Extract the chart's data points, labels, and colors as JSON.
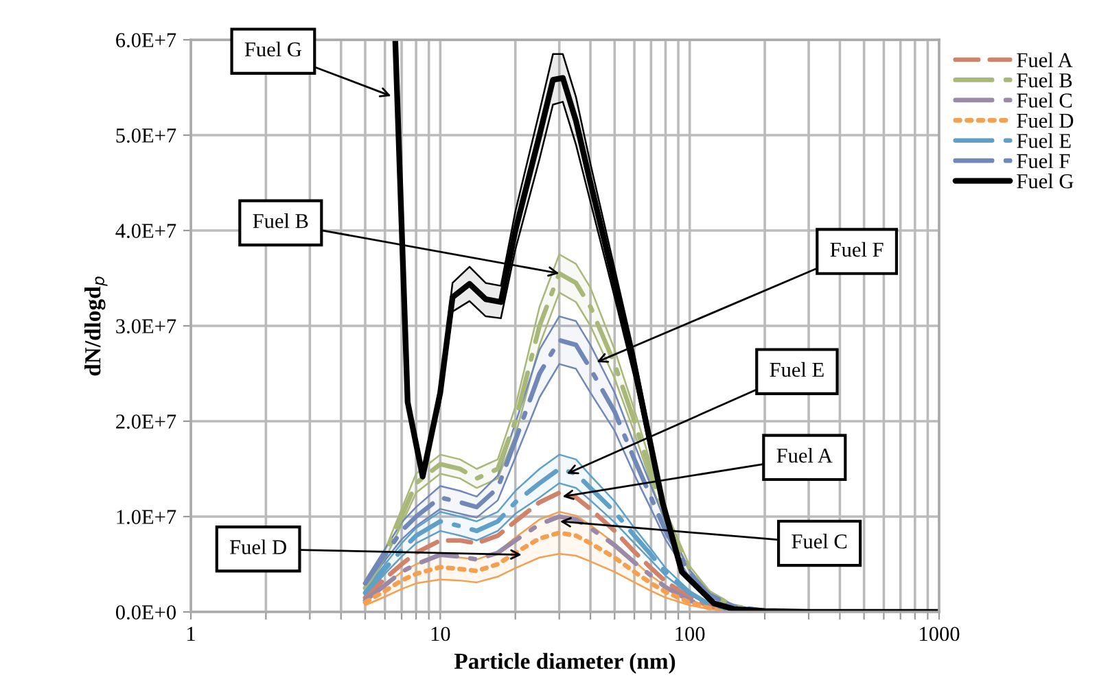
{
  "chart_data": {
    "type": "line",
    "xlabel": "Particle diameter (nm)",
    "ylabel": "dN/dlogd$_{p}$",
    "log": "x",
    "grid": true,
    "legend": "top right",
    "xlim": [
      1,
      1000
    ],
    "ylim": [
      0,
      60000000.0
    ],
    "xticks": [
      1,
      {
        "value": 2,
        "label": null
      },
      {
        "value": 3,
        "label": null
      },
      {
        "value": 4,
        "label": null
      },
      {
        "value": 5,
        "label": null
      },
      {
        "value": 6,
        "label": null
      },
      {
        "value": 7,
        "label": null
      },
      {
        "value": 8,
        "label": null
      },
      {
        "value": 9,
        "label": null
      },
      10,
      {
        "value": 20,
        "label": null
      },
      {
        "value": 30,
        "label": null
      },
      {
        "value": 40,
        "label": null
      },
      {
        "value": 50,
        "label": null
      },
      {
        "value": 60,
        "label": null
      },
      {
        "value": 70,
        "label": null
      },
      {
        "value": 80,
        "label": null
      },
      {
        "value": 90,
        "label": null
      },
      100,
      {
        "value": 200,
        "label": null
      },
      {
        "value": 300,
        "label": null
      },
      {
        "value": 400,
        "label": null
      },
      {
        "value": 500,
        "label": null
      },
      {
        "value": 600,
        "label": null
      },
      {
        "value": 700,
        "label": null
      },
      {
        "value": 800,
        "label": null
      },
      {
        "value": 900,
        "label": null
      },
      1000
    ],
    "yticks": [
      {
        "value": 0,
        "label": "0.0E+0"
      },
      {
        "value": 10000000.0,
        "label": "1.0E+7"
      },
      {
        "value": 20000000.0,
        "label": "2.0E+7"
      },
      {
        "value": 30000000.0,
        "label": "3.0E+7"
      },
      {
        "value": 40000000.0,
        "label": "4.0E+7"
      },
      {
        "value": 50000000.0,
        "label": "5.0E+7"
      },
      {
        "value": 60000000.0,
        "label": "6.0E+7"
      }
    ],
    "series": [
      {
        "name": "Fuel A",
        "color": "#d0826a",
        "line_style": "dashed",
        "x": [
          5,
          6,
          7,
          8,
          10,
          12,
          14,
          17,
          20,
          25,
          30,
          35,
          40,
          50,
          60,
          70,
          80,
          100,
          120,
          150,
          200
        ],
        "values": [
          1500000.0,
          3500000.0,
          5000000.0,
          6200000.0,
          7500000.0,
          7500000.0,
          7200000.0,
          8000000.0,
          9500000.0,
          11500000.0,
          12500000.0,
          12000000.0,
          10800000.0,
          8500000.0,
          6300000.0,
          4600000.0,
          3200000.0,
          1500000.0,
          600000.0,
          200000.0,
          0
        ]
      },
      {
        "name": "Fuel B",
        "color": "#a8b878",
        "line_style": "dashdot",
        "x": [
          5,
          6,
          7,
          8,
          10,
          12,
          14,
          17,
          20,
          25,
          30,
          35,
          40,
          50,
          60,
          70,
          80,
          100,
          120,
          150,
          200,
          300,
          500,
          1000
        ],
        "values": [
          2500000.0,
          6000000.0,
          10000000.0,
          13500000.0,
          15500000.0,
          15000000.0,
          14000000.0,
          15000000.0,
          20000000.0,
          30000000.0,
          35500000.0,
          34500000.0,
          32000000.0,
          26000000.0,
          20000000.0,
          14500000.0,
          10000000.0,
          4500000.0,
          2000000.0,
          600000.0,
          100000.0,
          0,
          0,
          0
        ],
        "upper": [
          2800000.0,
          6500000.0,
          10800000.0,
          14500000.0,
          16500000.0,
          16000000.0,
          15000000.0,
          16000000.0,
          21500000.0,
          32000000.0,
          37500000.0,
          36500000.0,
          34000000.0,
          27500000.0,
          21200000.0,
          15500000.0,
          10700000.0,
          4800000.0,
          2200000.0,
          700000.0,
          100000.0,
          0,
          0,
          0
        ],
        "lower": [
          2200000.0,
          5500000.0,
          9200000.0,
          12500000.0,
          14500000.0,
          14000000.0,
          13000000.0,
          14000000.0,
          18500000.0,
          28000000.0,
          33500000.0,
          32500000.0,
          30000000.0,
          24500000.0,
          18800000.0,
          13500000.0,
          9300000.0,
          4200000.0,
          1800000.0,
          500000.0,
          100000.0,
          0,
          0,
          0
        ]
      },
      {
        "name": "Fuel C",
        "color": "#9b89a8",
        "line_style": "dashdot",
        "x": [
          5,
          6,
          7,
          8,
          10,
          12,
          14,
          17,
          20,
          25,
          30,
          35,
          40,
          50,
          60,
          70,
          80,
          100,
          120,
          150,
          200,
          300,
          500,
          1000
        ],
        "values": [
          1200000.0,
          2800000.0,
          4200000.0,
          5000000.0,
          6000000.0,
          5800000.0,
          5500000.0,
          6200000.0,
          7500000.0,
          9200000.0,
          10000000.0,
          9700000.0,
          8800000.0,
          7000000.0,
          5200000.0,
          3800000.0,
          2600000.0,
          1200000.0,
          500000.0,
          200000.0,
          0,
          0,
          0,
          0
        ]
      },
      {
        "name": "Fuel D",
        "color": "#f5a050",
        "line_style": "dotted",
        "x": [
          5,
          6,
          7,
          8,
          10,
          12,
          14,
          17,
          20,
          25,
          30,
          35,
          40,
          50,
          60,
          70,
          80,
          100,
          120,
          150,
          200
        ],
        "values": [
          1000000.0,
          2200000.0,
          3300000.0,
          4000000.0,
          4700000.0,
          4500000.0,
          4300000.0,
          5000000.0,
          6200000.0,
          7700000.0,
          8300000.0,
          8000000.0,
          7200000.0,
          5700000.0,
          4200000.0,
          3000000.0,
          2100000.0,
          1000000.0,
          400000.0,
          100000.0,
          0
        ],
        "upper": [
          1300000.0,
          2800000.0,
          4200000.0,
          5000000.0,
          6000000.0,
          5700000.0,
          5500000.0,
          6300000.0,
          7800000.0,
          9700000.0,
          10500000.0,
          10100000.0,
          9100000.0,
          7200000.0,
          5300000.0,
          3800000.0,
          2700000.0,
          1300000.0,
          500000.0,
          100000.0,
          0
        ],
        "lower": [
          700000.0,
          1600000.0,
          2400000.0,
          3000000.0,
          3400000.0,
          3300000.0,
          3100000.0,
          3700000.0,
          4600000.0,
          5700000.0,
          6100000.0,
          5900000.0,
          5300000.0,
          4200000.0,
          3100000.0,
          2200000.0,
          1500000.0,
          700000.0,
          300000.0,
          100000.0,
          0
        ]
      },
      {
        "name": "Fuel E",
        "color": "#5fa0c8",
        "line_style": "dashdot",
        "x": [
          5,
          6,
          7,
          8,
          10,
          12,
          14,
          17,
          20,
          25,
          30,
          35,
          40,
          50,
          60,
          70,
          80,
          100,
          120,
          150,
          200,
          300
        ],
        "values": [
          2000000.0,
          4500000.0,
          6500000.0,
          8000000.0,
          9500000.0,
          9000000.0,
          8500000.0,
          9500000.0,
          11500000.0,
          13500000.0,
          15000000.0,
          14500000.0,
          13000000.0,
          10500000.0,
          8000000.0,
          6000000.0,
          4200000.0,
          2000000.0,
          800000.0,
          200000.0,
          0,
          0
        ],
        "upper": [
          2300000.0,
          5000000.0,
          7200000.0,
          8800000.0,
          10500000.0,
          10000000.0,
          9500000.0,
          10500000.0,
          12700000.0,
          15000000.0,
          16500000.0,
          16000000.0,
          14300000.0,
          11600000.0,
          8800000.0,
          6600000.0,
          4600000.0,
          2200000.0,
          900000.0,
          200000.0,
          0,
          0
        ],
        "lower": [
          1700000.0,
          4000000.0,
          5800000.0,
          7200000.0,
          8500000.0,
          8000000.0,
          7500000.0,
          8500000.0,
          10300000.0,
          12000000.0,
          13500000.0,
          13000000.0,
          11700000.0,
          9400000.0,
          7200000.0,
          5400000.0,
          3800000.0,
          1800000.0,
          700000.0,
          200000.0,
          0,
          0
        ]
      },
      {
        "name": "Fuel F",
        "color": "#7088b8",
        "line_style": "dashdot",
        "x": [
          5,
          6,
          7,
          8,
          10,
          12,
          14,
          17,
          20,
          25,
          30,
          35,
          40,
          50,
          60,
          70,
          80,
          100,
          120,
          150,
          200,
          300,
          500,
          1000
        ],
        "values": [
          3000000.0,
          6000000.0,
          8500000.0,
          10000000.0,
          12000000.0,
          11500000.0,
          11000000.0,
          13000000.0,
          18000000.0,
          25000000.0,
          28500000.0,
          28000000.0,
          25500000.0,
          21000000.0,
          16000000.0,
          12000000.0,
          8500000.0,
          4000000.0,
          1800000.0,
          600000.0,
          100000.0,
          0,
          0,
          0
        ],
        "upper": [
          3300000.0,
          6600000.0,
          9400000.0,
          11000000.0,
          13200000.0,
          12700000.0,
          12100000.0,
          14300000.0,
          19800000.0,
          27500000.0,
          31000000.0,
          30500000.0,
          28000000.0,
          23000000.0,
          17600000.0,
          13200000.0,
          9400000.0,
          4400000.0,
          2000000.0,
          700000.0,
          100000.0,
          0,
          0,
          0
        ],
        "lower": [
          2700000.0,
          5400000.0,
          7600000.0,
          9000000.0,
          10800000.0,
          10300000.0,
          9900000.0,
          11700000.0,
          16200000.0,
          22500000.0,
          26000000.0,
          25500000.0,
          23000000.0,
          19000000.0,
          14400000.0,
          10800000.0,
          7600000.0,
          3600000.0,
          1600000.0,
          500000.0,
          100000.0,
          0,
          0,
          0
        ]
      },
      {
        "name": "Fuel G",
        "color": "#000000",
        "line_style": "solid",
        "x": [
          6.6,
          7.4,
          8.5,
          10,
          11.2,
          13.1,
          15.2,
          17.5,
          20,
          25,
          28.3,
          31,
          35,
          40,
          50,
          60,
          78,
          93,
          125,
          150,
          200,
          300,
          500,
          1000
        ],
        "values": [
          60000000.0,
          22000000.0,
          14200000.0,
          23000000.0,
          33000000.0,
          34400000.0,
          32800000.0,
          32500000.0,
          40000000.0,
          50000000.0,
          55800000.0,
          56000000.0,
          51500000.0,
          45000000.0,
          34500000.0,
          25800000.0,
          11400000.0,
          4200000.0,
          900000.0,
          300000.0,
          100000.0,
          0,
          0,
          0
        ],
        "upper": [
          60000000.0,
          22500000.0,
          14500000.0,
          24000000.0,
          34500000.0,
          36200000.0,
          34500000.0,
          34200000.0,
          42000000.0,
          52500000.0,
          58500000.0,
          58500000.0,
          54000000.0,
          47000000.0,
          36000000.0,
          27000000.0,
          12000000.0,
          4400000.0,
          1000000.0,
          300000.0,
          100000.0,
          0,
          0,
          0
        ],
        "lower": [
          60000000.0,
          21500000.0,
          13900000.0,
          22000000.0,
          31500000.0,
          32600000.0,
          31000000.0,
          30800000.0,
          38000000.0,
          47500000.0,
          53200000.0,
          53500000.0,
          49000000.0,
          43000000.0,
          33000000.0,
          24600000.0,
          10800000.0,
          4000000.0,
          800000.0,
          300000.0,
          100000.0,
          0,
          0,
          0
        ]
      }
    ],
    "annotations": [
      {
        "text": "Fuel G",
        "x": 6.35,
        "y": 54100000.0
      },
      {
        "text": "Fuel B",
        "x": 30,
        "y": 35500000.0
      },
      {
        "text": "Fuel F",
        "x": 42.4,
        "y": 26200000.0
      },
      {
        "text": "Fuel E",
        "x": 32.2,
        "y": 14500000.0
      },
      {
        "text": "Fuel A",
        "x": 30.9,
        "y": 12100000.0
      },
      {
        "text": "Fuel C",
        "x": 30.2,
        "y": 9500000.0
      },
      {
        "text": "Fuel D",
        "x": 21.2,
        "y": 6000000.0
      }
    ]
  }
}
